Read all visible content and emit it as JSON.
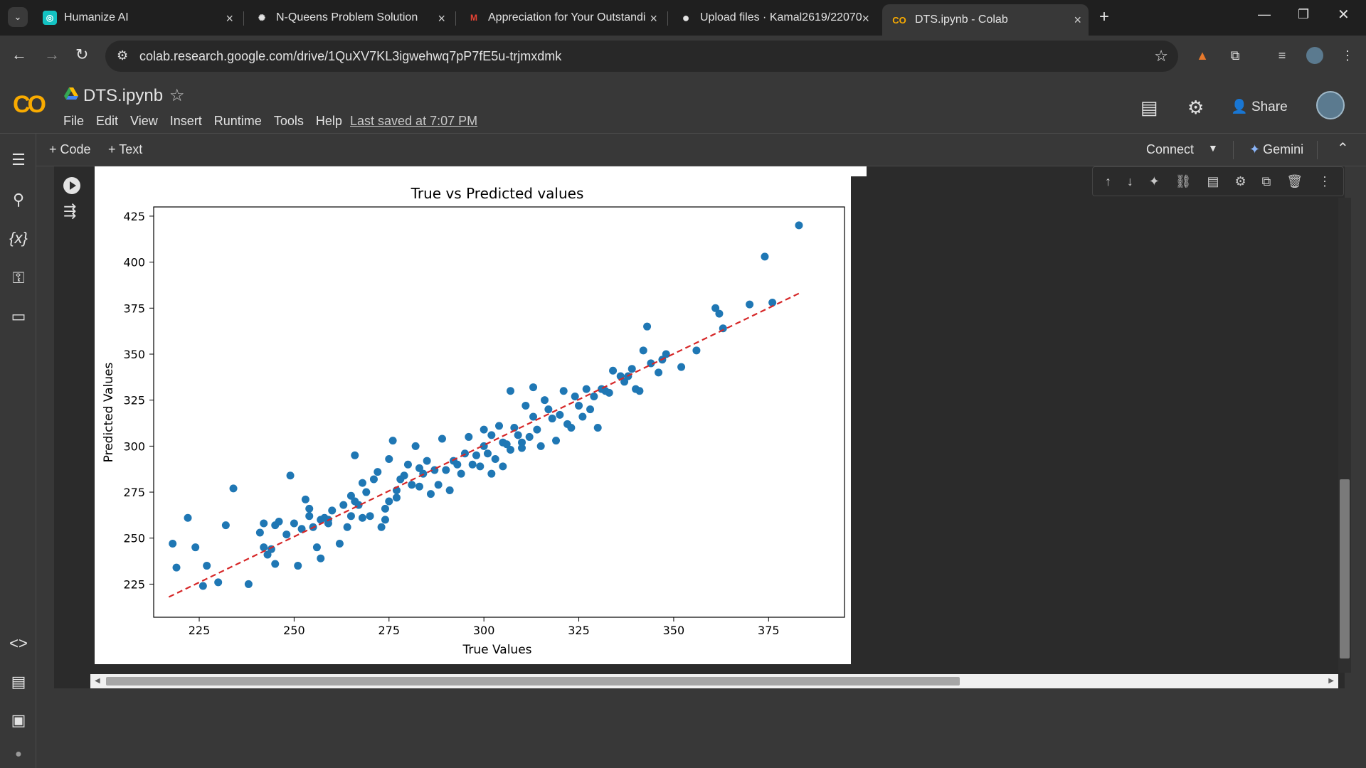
{
  "browser": {
    "tabs": [
      {
        "title": "Humanize AI",
        "favicon": "humanize-ai-icon",
        "color": "#13c2c2",
        "glyph": "◎"
      },
      {
        "title": "N-Queens Problem Solution",
        "favicon": "chatgpt-icon",
        "color": "#e3e3e3",
        "glyph": "✺"
      },
      {
        "title": "Appreciation for Your Outstandi",
        "favicon": "gmail-icon",
        "color": "#ea4335",
        "glyph": "M"
      },
      {
        "title": "Upload files · Kamal2619/22070",
        "favicon": "github-icon",
        "color": "#e3e3e3",
        "glyph": "●"
      },
      {
        "title": "DTS.ipynb - Colab",
        "favicon": "colab-icon",
        "color": "#f9ab00",
        "glyph": "CO"
      }
    ],
    "active_tab": 4,
    "url": "colab.research.google.com/drive/1QuXV7KL3igwehwq7pP7fE5u-trjmxdmk"
  },
  "colab": {
    "title": "DTS.ipynb",
    "menu": [
      "File",
      "Edit",
      "View",
      "Insert",
      "Runtime",
      "Tools",
      "Help"
    ],
    "last_saved": "Last saved at 7:07 PM",
    "share_label": "Share",
    "toolbar": {
      "code_label": "+ Code",
      "text_label": "+ Text",
      "connect_label": "Connect",
      "gemini_label": "Gemini"
    }
  },
  "chart_data": {
    "type": "scatter",
    "title": "True vs Predicted values",
    "xlabel": "True Values",
    "ylabel": "Predicted Values",
    "xlim": [
      213,
      395
    ],
    "ylim": [
      207,
      430
    ],
    "xticks": [
      225,
      250,
      275,
      300,
      325,
      350,
      375
    ],
    "yticks": [
      225,
      250,
      275,
      300,
      325,
      350,
      375,
      400,
      425
    ],
    "point_color": "#1f77b4",
    "reference_line": {
      "style": "dashed",
      "color": "#d62728",
      "x": [
        217,
        383
      ],
      "y": [
        218,
        383
      ]
    },
    "x": [
      218,
      219,
      222,
      224,
      226,
      227,
      230,
      232,
      234,
      238,
      241,
      242,
      242,
      243,
      244,
      245,
      245,
      246,
      248,
      249,
      250,
      251,
      252,
      253,
      254,
      254,
      255,
      256,
      257,
      257,
      258,
      259,
      259,
      260,
      262,
      263,
      264,
      265,
      265,
      266,
      266,
      267,
      268,
      268,
      269,
      270,
      271,
      272,
      273,
      274,
      274,
      275,
      275,
      276,
      277,
      277,
      278,
      279,
      280,
      281,
      282,
      283,
      283,
      284,
      285,
      286,
      287,
      288,
      289,
      290,
      291,
      292,
      293,
      294,
      295,
      296,
      297,
      298,
      299,
      300,
      300,
      301,
      302,
      302,
      303,
      304,
      305,
      305,
      306,
      307,
      307,
      308,
      309,
      310,
      310,
      311,
      312,
      313,
      313,
      314,
      315,
      316,
      317,
      318,
      319,
      320,
      321,
      322,
      323,
      324,
      325,
      326,
      327,
      328,
      329,
      330,
      331,
      332,
      333,
      334,
      336,
      337,
      338,
      339,
      340,
      341,
      342,
      343,
      344,
      346,
      347,
      348,
      352,
      356,
      361,
      362,
      363,
      370,
      374,
      376,
      383
    ],
    "y": [
      247,
      234,
      261,
      245,
      224,
      235,
      226,
      257,
      277,
      225,
      253,
      245,
      258,
      241,
      244,
      236,
      257,
      259,
      252,
      284,
      258,
      235,
      255,
      271,
      266,
      262,
      256,
      245,
      260,
      239,
      261,
      258,
      260,
      265,
      247,
      268,
      256,
      273,
      262,
      270,
      295,
      268,
      280,
      261,
      275,
      262,
      282,
      286,
      256,
      266,
      260,
      293,
      270,
      303,
      276,
      272,
      282,
      284,
      290,
      279,
      300,
      288,
      278,
      285,
      292,
      274,
      287,
      279,
      304,
      287,
      276,
      292,
      290,
      285,
      296,
      305,
      290,
      295,
      289,
      309,
      300,
      296,
      285,
      306,
      293,
      311,
      289,
      302,
      301,
      298,
      330,
      310,
      306,
      302,
      299,
      322,
      305,
      332,
      316,
      309,
      300,
      325,
      320,
      315,
      303,
      317,
      330,
      312,
      310,
      327,
      322,
      316,
      331,
      320,
      327,
      310,
      331,
      330,
      329,
      341,
      338,
      335,
      338,
      342,
      331,
      330,
      352,
      365,
      345,
      340,
      347,
      350,
      343,
      352,
      375,
      372,
      364,
      377,
      403,
      378,
      420
    ]
  }
}
